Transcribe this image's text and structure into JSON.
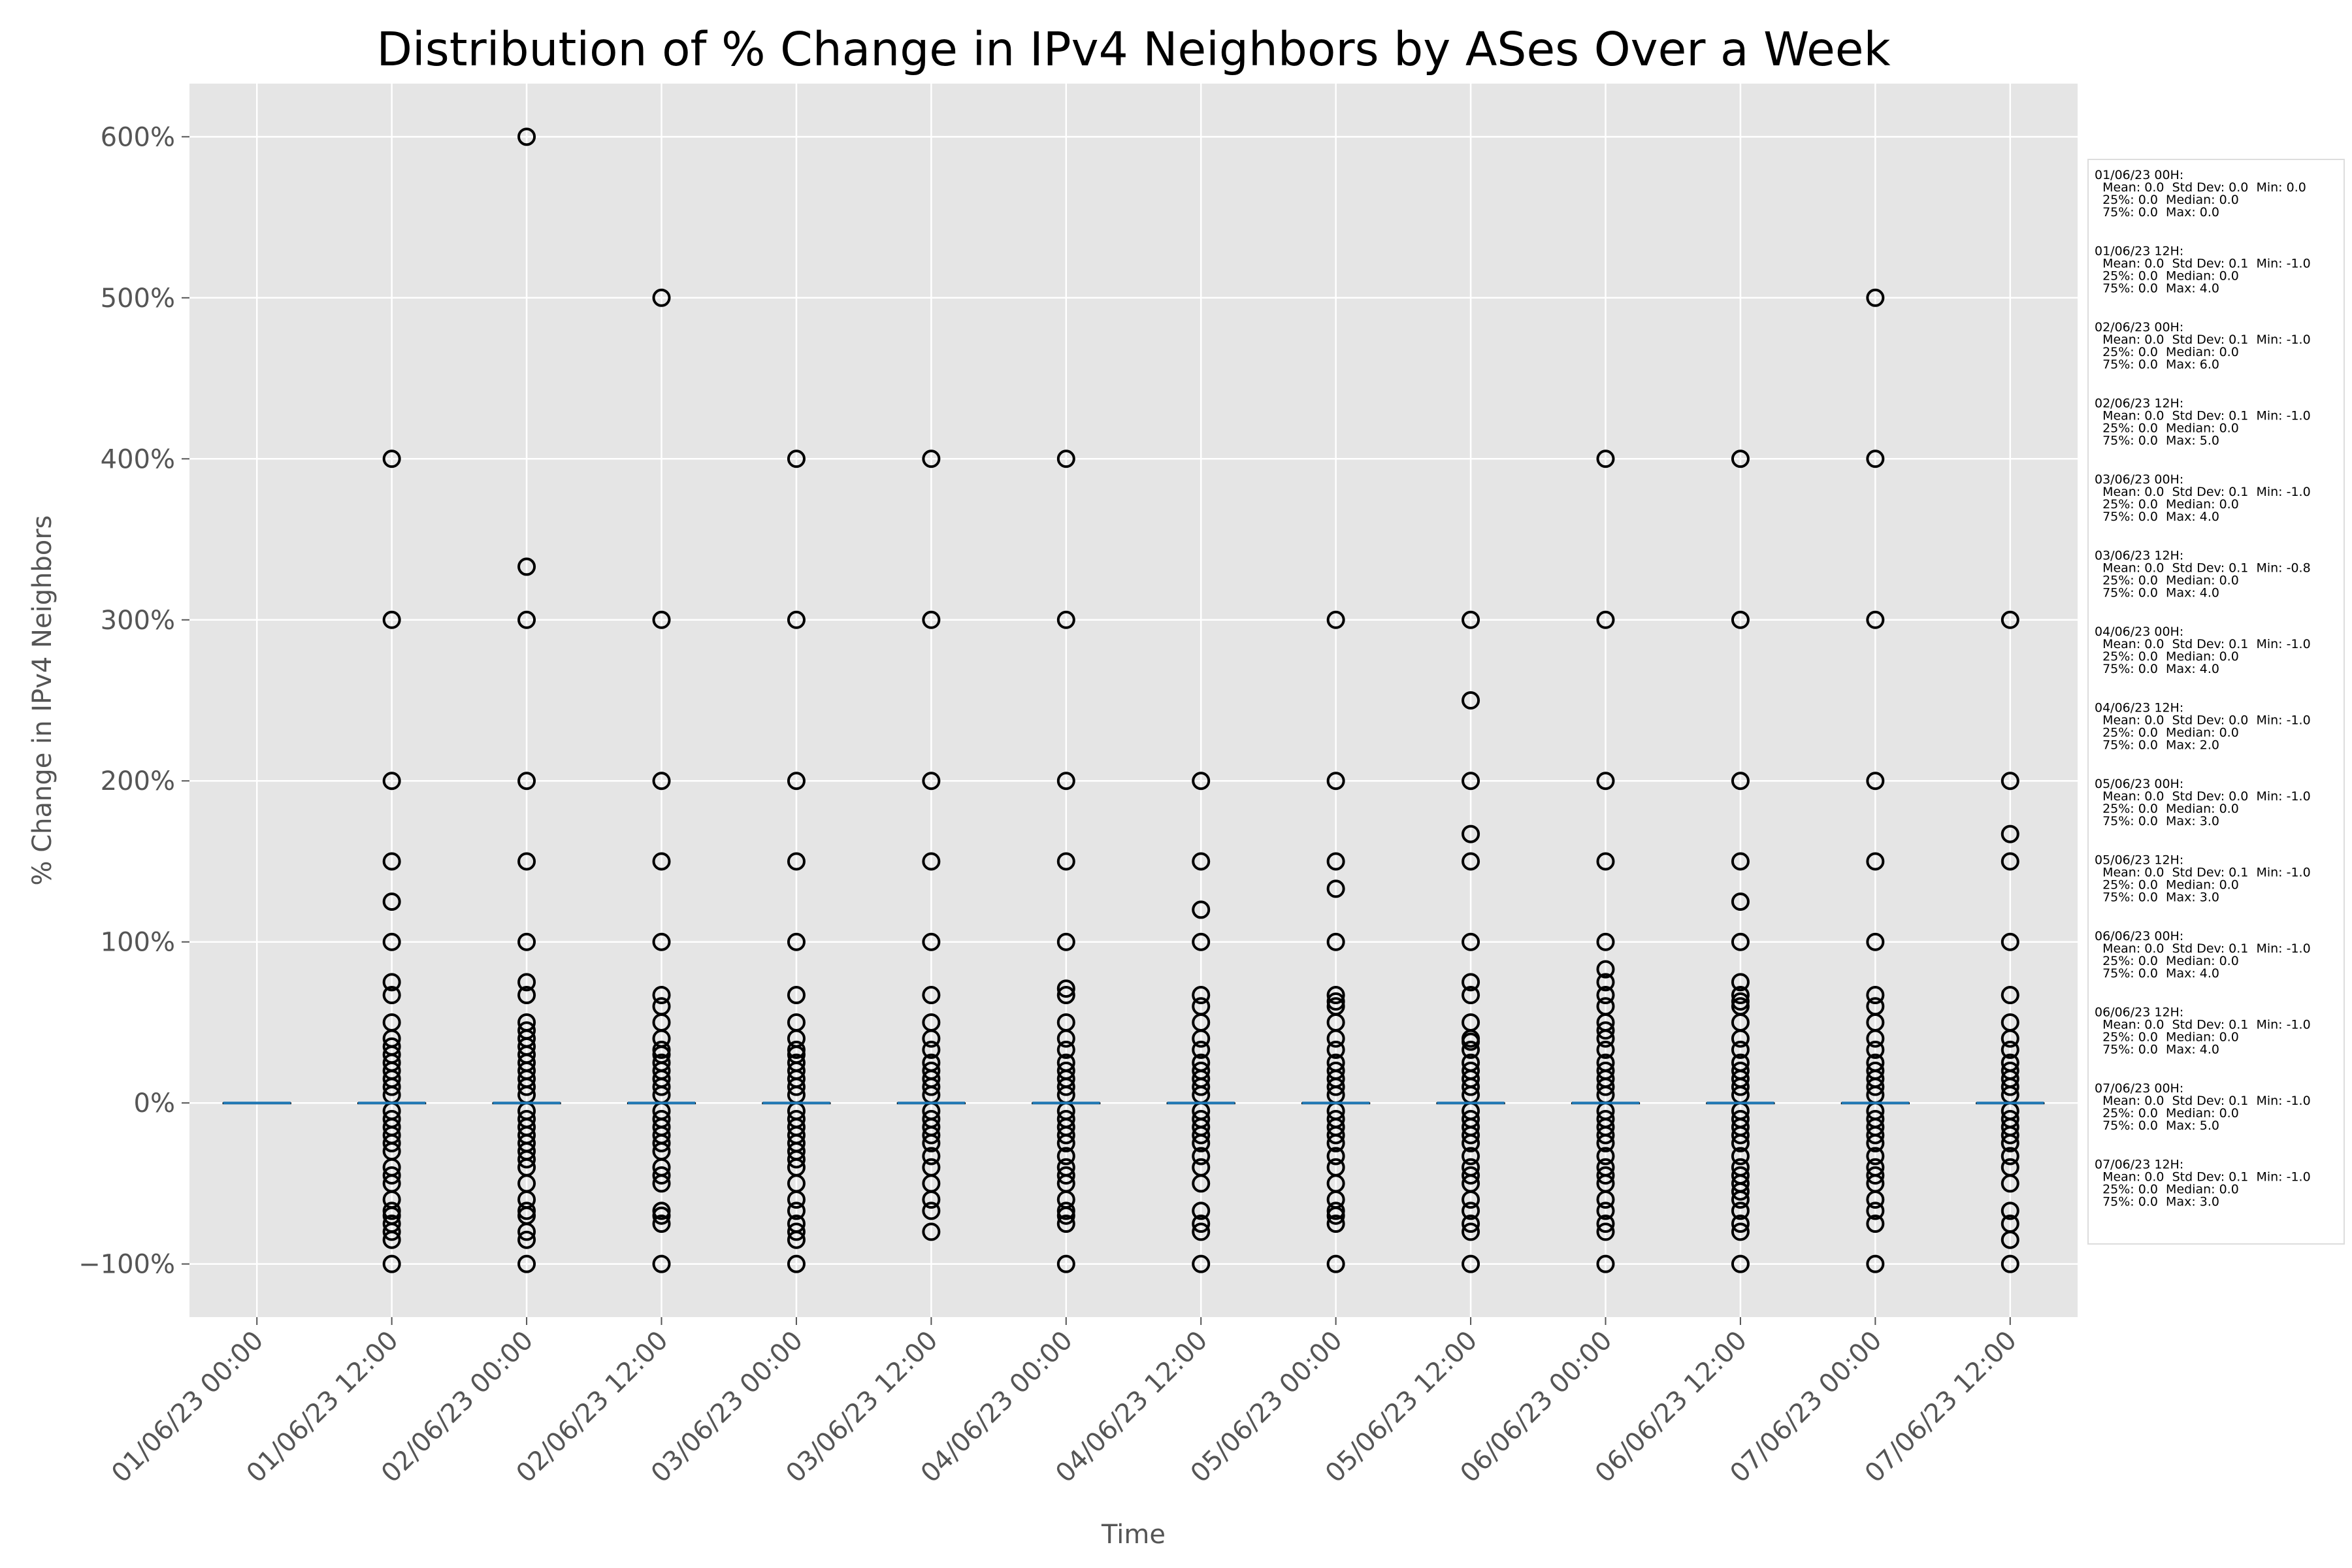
{
  "chart_data": {
    "type": "box",
    "title": "Distribution of % Change in IPv4 Neighbors by ASes Over a Week",
    "xlabel": "Time",
    "ylabel": "% Change in IPv4 Neighbors",
    "ylim": [
      -133,
      633
    ],
    "yticks": [
      -100,
      0,
      100,
      200,
      300,
      400,
      500,
      600
    ],
    "ytick_labels": [
      "−100%",
      "0%",
      "100%",
      "200%",
      "300%",
      "400%",
      "500%",
      "600%"
    ],
    "grid": true,
    "categories": [
      "01/06/23 00:00",
      "01/06/23 12:00",
      "02/06/23 00:00",
      "02/06/23 12:00",
      "03/06/23 00:00",
      "03/06/23 12:00",
      "04/06/23 00:00",
      "04/06/23 12:00",
      "05/06/23 00:00",
      "05/06/23 12:00",
      "06/06/23 00:00",
      "06/06/23 12:00",
      "07/06/23 00:00",
      "07/06/23 12:00"
    ],
    "median_line_color": "#1f77b4",
    "outlier_color": "#000000",
    "boxes": [
      {
        "median": 0,
        "q1": 0,
        "q3": 0,
        "outliers": []
      },
      {
        "median": 0,
        "q1": 0,
        "q3": 0,
        "outliers": [
          400,
          300,
          200,
          150,
          125,
          100,
          75,
          67,
          50,
          40,
          35,
          30,
          25,
          20,
          15,
          10,
          5,
          -5,
          -10,
          -15,
          -20,
          -25,
          -30,
          -40,
          -45,
          -50,
          -60,
          -67,
          -70,
          -75,
          -80,
          -85,
          -100
        ]
      },
      {
        "median": 0,
        "q1": 0,
        "q3": 0,
        "outliers": [
          600,
          333,
          300,
          200,
          150,
          100,
          75,
          67,
          50,
          45,
          40,
          35,
          30,
          25,
          20,
          15,
          10,
          5,
          -5,
          -10,
          -15,
          -20,
          -25,
          -30,
          -35,
          -40,
          -50,
          -60,
          -67,
          -70,
          -80,
          -85,
          -100
        ]
      },
      {
        "median": 0,
        "q1": 0,
        "q3": 0,
        "outliers": [
          500,
          300,
          200,
          150,
          100,
          67,
          60,
          50,
          40,
          33,
          30,
          25,
          20,
          15,
          10,
          5,
          -5,
          -10,
          -15,
          -20,
          -25,
          -30,
          -40,
          -45,
          -50,
          -67,
          -70,
          -75,
          -100
        ]
      },
      {
        "median": 0,
        "q1": 0,
        "q3": 0,
        "outliers": [
          400,
          300,
          200,
          150,
          100,
          67,
          50,
          40,
          33,
          30,
          25,
          20,
          15,
          10,
          5,
          -5,
          -10,
          -15,
          -20,
          -25,
          -30,
          -35,
          -40,
          -50,
          -60,
          -67,
          -75,
          -80,
          -85,
          -100
        ]
      },
      {
        "median": 0,
        "q1": 0,
        "q3": 0,
        "outliers": [
          400,
          300,
          200,
          150,
          100,
          67,
          50,
          40,
          33,
          25,
          20,
          15,
          10,
          5,
          -5,
          -10,
          -15,
          -20,
          -25,
          -33,
          -40,
          -50,
          -60,
          -67,
          -80
        ]
      },
      {
        "median": 0,
        "q1": 0,
        "q3": 0,
        "outliers": [
          400,
          300,
          200,
          150,
          100,
          71,
          67,
          50,
          40,
          33,
          25,
          20,
          15,
          10,
          5,
          -5,
          -10,
          -15,
          -20,
          -25,
          -33,
          -40,
          -45,
          -50,
          -60,
          -67,
          -70,
          -75,
          -100
        ]
      },
      {
        "median": 0,
        "q1": 0,
        "q3": 0,
        "outliers": [
          200,
          150,
          120,
          100,
          67,
          60,
          50,
          40,
          33,
          25,
          20,
          15,
          10,
          5,
          -5,
          -10,
          -15,
          -20,
          -25,
          -33,
          -40,
          -50,
          -67,
          -75,
          -80,
          -100
        ]
      },
      {
        "median": 0,
        "q1": 0,
        "q3": 0,
        "outliers": [
          300,
          200,
          150,
          133,
          100,
          67,
          63,
          60,
          50,
          40,
          33,
          25,
          20,
          15,
          10,
          5,
          -5,
          -10,
          -15,
          -20,
          -25,
          -33,
          -40,
          -50,
          -60,
          -67,
          -70,
          -75,
          -100
        ]
      },
      {
        "median": 0,
        "q1": 0,
        "q3": 0,
        "outliers": [
          300,
          250,
          200,
          167,
          150,
          100,
          75,
          67,
          50,
          40,
          38,
          33,
          25,
          20,
          15,
          10,
          5,
          -5,
          -10,
          -15,
          -20,
          -25,
          -33,
          -40,
          -45,
          -50,
          -60,
          -67,
          -75,
          -80,
          -100
        ]
      },
      {
        "median": 0,
        "q1": 0,
        "q3": 0,
        "outliers": [
          400,
          300,
          200,
          150,
          100,
          83,
          75,
          67,
          60,
          50,
          45,
          40,
          33,
          25,
          20,
          15,
          10,
          5,
          -5,
          -10,
          -15,
          -20,
          -25,
          -33,
          -40,
          -45,
          -50,
          -60,
          -67,
          -75,
          -80,
          -100
        ]
      },
      {
        "median": 0,
        "q1": 0,
        "q3": 0,
        "outliers": [
          400,
          300,
          200,
          150,
          125,
          100,
          75,
          67,
          63,
          60,
          50,
          40,
          33,
          25,
          20,
          15,
          10,
          5,
          -5,
          -10,
          -15,
          -20,
          -25,
          -33,
          -40,
          -45,
          -50,
          -55,
          -60,
          -67,
          -75,
          -80,
          -100
        ]
      },
      {
        "median": 0,
        "q1": 0,
        "q3": 0,
        "outliers": [
          500,
          400,
          300,
          200,
          150,
          100,
          67,
          60,
          50,
          40,
          33,
          25,
          20,
          15,
          10,
          5,
          -5,
          -10,
          -15,
          -20,
          -25,
          -33,
          -40,
          -45,
          -50,
          -60,
          -67,
          -75,
          -100
        ]
      },
      {
        "median": 0,
        "q1": 0,
        "q3": 0,
        "outliers": [
          300,
          200,
          167,
          150,
          100,
          67,
          50,
          40,
          33,
          25,
          20,
          15,
          10,
          5,
          -5,
          -10,
          -15,
          -20,
          -25,
          -33,
          -40,
          -50,
          -67,
          -75,
          -85,
          -100
        ]
      }
    ],
    "stats_box": [
      {
        "label": "01/06/23 00H:",
        "line1": "Mean: 0.0  Std Dev: 0.0  Min: 0.0",
        "line2": "25%: 0.0  Median: 0.0",
        "line3": "75%: 0.0  Max: 0.0"
      },
      {
        "label": "01/06/23 12H:",
        "line1": "Mean: 0.0  Std Dev: 0.1  Min: -1.0",
        "line2": "25%: 0.0  Median: 0.0",
        "line3": "75%: 0.0  Max: 4.0"
      },
      {
        "label": "02/06/23 00H:",
        "line1": "Mean: 0.0  Std Dev: 0.1  Min: -1.0",
        "line2": "25%: 0.0  Median: 0.0",
        "line3": "75%: 0.0  Max: 6.0"
      },
      {
        "label": "02/06/23 12H:",
        "line1": "Mean: 0.0  Std Dev: 0.1  Min: -1.0",
        "line2": "25%: 0.0  Median: 0.0",
        "line3": "75%: 0.0  Max: 5.0"
      },
      {
        "label": "03/06/23 00H:",
        "line1": "Mean: 0.0  Std Dev: 0.1  Min: -1.0",
        "line2": "25%: 0.0  Median: 0.0",
        "line3": "75%: 0.0  Max: 4.0"
      },
      {
        "label": "03/06/23 12H:",
        "line1": "Mean: 0.0  Std Dev: 0.1  Min: -0.8",
        "line2": "25%: 0.0  Median: 0.0",
        "line3": "75%: 0.0  Max: 4.0"
      },
      {
        "label": "04/06/23 00H:",
        "line1": "Mean: 0.0  Std Dev: 0.1  Min: -1.0",
        "line2": "25%: 0.0  Median: 0.0",
        "line3": "75%: 0.0  Max: 4.0"
      },
      {
        "label": "04/06/23 12H:",
        "line1": "Mean: 0.0  Std Dev: 0.0  Min: -1.0",
        "line2": "25%: 0.0  Median: 0.0",
        "line3": "75%: 0.0  Max: 2.0"
      },
      {
        "label": "05/06/23 00H:",
        "line1": "Mean: 0.0  Std Dev: 0.0  Min: -1.0",
        "line2": "25%: 0.0  Median: 0.0",
        "line3": "75%: 0.0  Max: 3.0"
      },
      {
        "label": "05/06/23 12H:",
        "line1": "Mean: 0.0  Std Dev: 0.1  Min: -1.0",
        "line2": "25%: 0.0  Median: 0.0",
        "line3": "75%: 0.0  Max: 3.0"
      },
      {
        "label": "06/06/23 00H:",
        "line1": "Mean: 0.0  Std Dev: 0.1  Min: -1.0",
        "line2": "25%: 0.0  Median: 0.0",
        "line3": "75%: 0.0  Max: 4.0"
      },
      {
        "label": "06/06/23 12H:",
        "line1": "Mean: 0.0  Std Dev: 0.1  Min: -1.0",
        "line2": "25%: 0.0  Median: 0.0",
        "line3": "75%: 0.0  Max: 4.0"
      },
      {
        "label": "07/06/23 00H:",
        "line1": "Mean: 0.0  Std Dev: 0.1  Min: -1.0",
        "line2": "25%: 0.0  Median: 0.0",
        "line3": "75%: 0.0  Max: 5.0"
      },
      {
        "label": "07/06/23 12H:",
        "line1": "Mean: 0.0  Std Dev: 0.1  Min: -1.0",
        "line2": "25%: 0.0  Median: 0.0",
        "line3": "75%: 0.0  Max: 3.0"
      }
    ]
  }
}
